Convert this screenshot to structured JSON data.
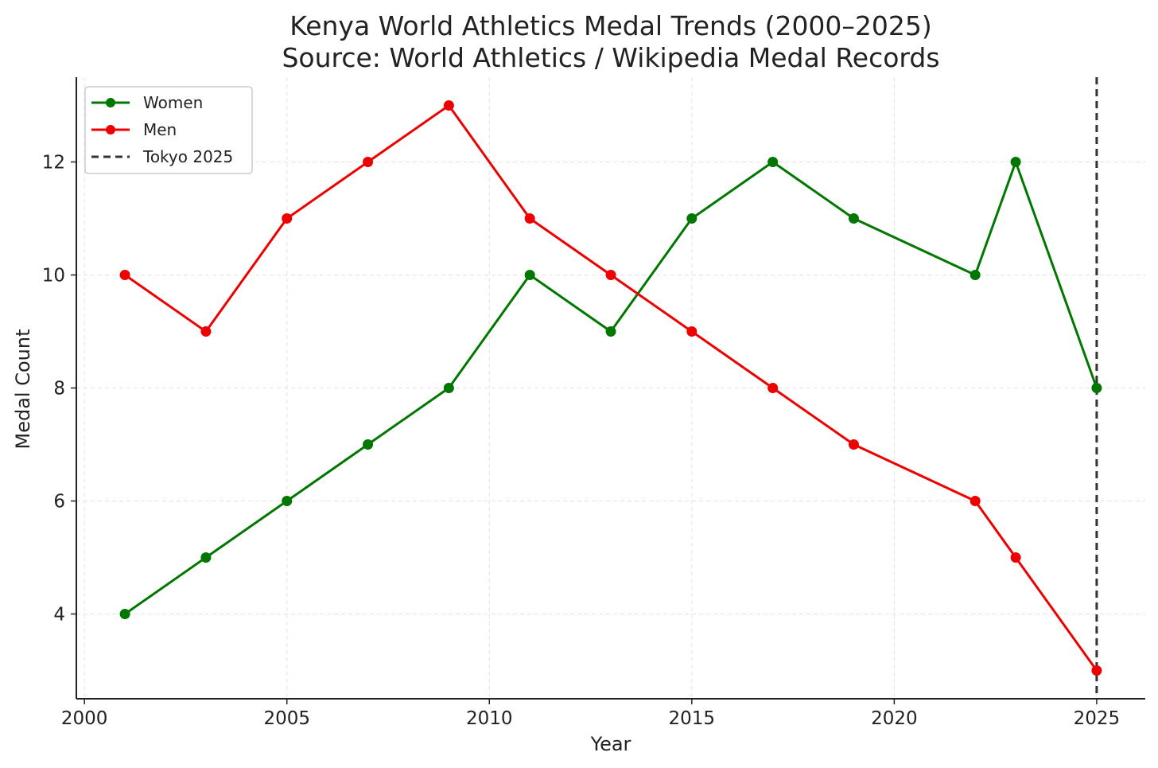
{
  "chart_data": {
    "type": "line",
    "title": "Kenya World Athletics Medal Trends (2000–2025)",
    "subtitle": "Source: World Athletics / Wikipedia Medal Records",
    "xlabel": "Year",
    "ylabel": "Medal Count",
    "xlim": [
      1999.8,
      2026.2
    ],
    "ylim": [
      2.5,
      13.5
    ],
    "xticks": [
      2000,
      2005,
      2010,
      2015,
      2020,
      2025
    ],
    "yticks": [
      4,
      6,
      8,
      10,
      12
    ],
    "grid": true,
    "legend_position": "top-left",
    "x": [
      2001,
      2003,
      2005,
      2007,
      2009,
      2011,
      2013,
      2015,
      2017,
      2019,
      2022,
      2023,
      2025
    ],
    "series": [
      {
        "name": "Women",
        "color": "#007700",
        "values": [
          4,
          5,
          6,
          7,
          8,
          10,
          9,
          11,
          12,
          11,
          10,
          12,
          8
        ]
      },
      {
        "name": "Men",
        "color": "#ee0000",
        "values": [
          10,
          9,
          11,
          12,
          13,
          11,
          10,
          9,
          8,
          7,
          6,
          5,
          3
        ]
      }
    ],
    "reference_line": {
      "name": "Tokyo 2025",
      "x": 2025,
      "color": "#333333",
      "style": "dashed"
    }
  }
}
